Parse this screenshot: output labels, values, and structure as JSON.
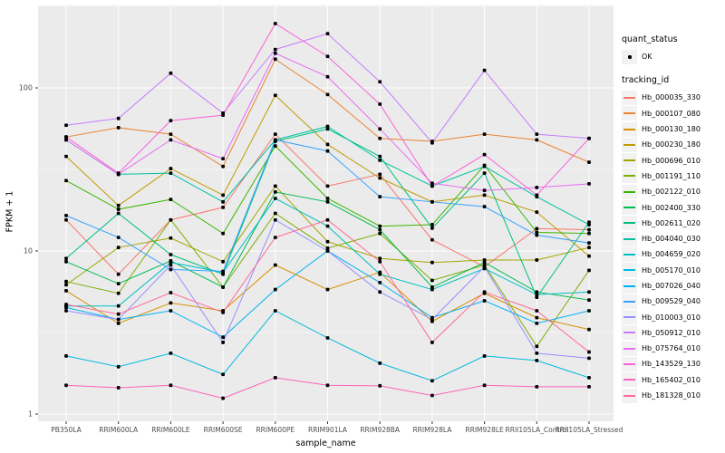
{
  "figure": {
    "panel_bg": "#EBEBEB",
    "grid_color": "#FFFFFF",
    "tick_label_color": "#4D4D4D",
    "point_color": "#000000"
  },
  "legend": {
    "quant_status_title": "quant_status",
    "quant_status_items": [
      {
        "label": "OK",
        "marker": "black-point"
      }
    ],
    "tracking_id_title": "tracking_id"
  },
  "chart_data": {
    "type": "line",
    "title": "",
    "xlabel": "sample_name",
    "ylabel": "FPKM + 1",
    "y_scale": "log10",
    "grid": "on",
    "legend_position": "right",
    "y_ticks": [
      1,
      10,
      100
    ],
    "y_minor_ticks": [
      3.162,
      31.62,
      316.2
    ],
    "ylim": [
      0.85,
      325
    ],
    "categories": [
      "PB350LA",
      "RRIM600LA",
      "RRIM600LE",
      "RRIM600SE",
      "RRIM600PE",
      "RRIM901LA",
      "RRIM928BA",
      "RRIM928LA",
      "RRIM928LE",
      "RRII105LA_Control",
      "RRII105LA_Stressed"
    ],
    "series": [
      {
        "name": "Hb_000035_330",
        "color": "#F8766D",
        "values": [
          15.5,
          7.2,
          15.5,
          18.5,
          52,
          25,
          29.5,
          11.7,
          8.0,
          13.7,
          13.5
        ]
      },
      {
        "name": "Hb_000107_080",
        "color": "#EA8331",
        "values": [
          50,
          57,
          52,
          33,
          150,
          91,
          49,
          47,
          52,
          48,
          35
        ]
      },
      {
        "name": "Hb_000130_180",
        "color": "#D89000",
        "values": [
          5.7,
          3.6,
          4.8,
          4.3,
          8.2,
          5.8,
          7.4,
          3.7,
          5.5,
          3.9,
          3.3
        ]
      },
      {
        "name": "Hb_000230_180",
        "color": "#C09B00",
        "values": [
          38,
          19,
          32,
          22,
          90,
          45,
          28,
          20,
          22,
          17.3,
          9.3
        ]
      },
      {
        "name": "Hb_000696_010",
        "color": "#A3A500",
        "values": [
          6.2,
          10.5,
          12,
          8.6,
          25,
          11.4,
          9.0,
          8.5,
          8.8,
          8.8,
          10.5
        ]
      },
      {
        "name": "Hb_001191_110",
        "color": "#7CAE00",
        "values": [
          6.5,
          5.5,
          15.5,
          6.0,
          17,
          10.4,
          12.8,
          6.6,
          8.2,
          2.6,
          7.6
        ]
      },
      {
        "name": "Hb_002122_010",
        "color": "#39B600",
        "values": [
          27,
          18,
          20.7,
          12.8,
          44,
          21,
          14.2,
          14.5,
          33.5,
          13,
          12.8
        ]
      },
      {
        "name": "Hb_002400_330",
        "color": "#00BB4E",
        "values": [
          8.6,
          6.3,
          8.7,
          6.0,
          23,
          20,
          13.5,
          6.0,
          8.5,
          5.6,
          5.0
        ]
      },
      {
        "name": "Hb_002611_020",
        "color": "#00BF7D",
        "values": [
          9.0,
          17,
          9.5,
          7.2,
          47,
          56,
          38,
          13.8,
          30,
          5.2,
          15
        ]
      },
      {
        "name": "Hb_004040_030",
        "color": "#00C1A3",
        "values": [
          48,
          29.5,
          30,
          20,
          48,
          58,
          36,
          25,
          33,
          21.5,
          14.5
        ]
      },
      {
        "name": "Hb_004659_020",
        "color": "#00BFC4",
        "values": [
          4.6,
          4.6,
          8.5,
          7.4,
          21,
          14.2,
          7.2,
          5.8,
          7.8,
          5.4,
          5.6
        ]
      },
      {
        "name": "Hb_005170_010",
        "color": "#00BAE0",
        "values": [
          2.27,
          1.95,
          2.36,
          1.75,
          4.3,
          2.93,
          2.05,
          1.6,
          2.27,
          2.13,
          1.67
        ]
      },
      {
        "name": "Hb_007026_040",
        "color": "#00B0F6",
        "values": [
          4.5,
          3.8,
          4.3,
          2.96,
          5.8,
          10.0,
          6.4,
          3.9,
          4.95,
          3.6,
          4.3
        ]
      },
      {
        "name": "Hb_009529_040",
        "color": "#35A2FF",
        "values": [
          16.5,
          12.1,
          7.7,
          7.5,
          48,
          41,
          21.5,
          20,
          18.7,
          12.5,
          11.2
        ]
      },
      {
        "name": "Hb_010003_010",
        "color": "#9590FF",
        "values": [
          4.3,
          3.8,
          8.2,
          2.75,
          15.5,
          10,
          5.6,
          3.8,
          8.0,
          2.36,
          2.2
        ]
      },
      {
        "name": "Hb_050912_010",
        "color": "#C77CFF",
        "values": [
          59,
          65,
          123,
          70,
          172,
          215,
          109,
          46,
          128,
          52,
          49
        ]
      },
      {
        "name": "Hb_075764_010",
        "color": "#E76BF3",
        "values": [
          48,
          29.5,
          48,
          36.8,
          163,
          117,
          56,
          26,
          23.5,
          24.5,
          25.8
        ]
      },
      {
        "name": "Hb_143529_130",
        "color": "#FA62DB",
        "values": [
          50,
          30,
          63,
          68,
          248,
          156,
          79.5,
          25,
          39,
          22,
          49
        ]
      },
      {
        "name": "Hb_165402_010",
        "color": "#FF62BC",
        "values": [
          1.5,
          1.45,
          1.5,
          1.25,
          1.67,
          1.5,
          1.49,
          1.3,
          1.5,
          1.47,
          1.47
        ]
      },
      {
        "name": "Hb_181328_010",
        "color": "#FF6A98",
        "values": [
          4.7,
          4.1,
          5.55,
          4.2,
          12.1,
          15.5,
          8.6,
          2.75,
          5.6,
          4.3,
          2.4
        ]
      }
    ]
  }
}
